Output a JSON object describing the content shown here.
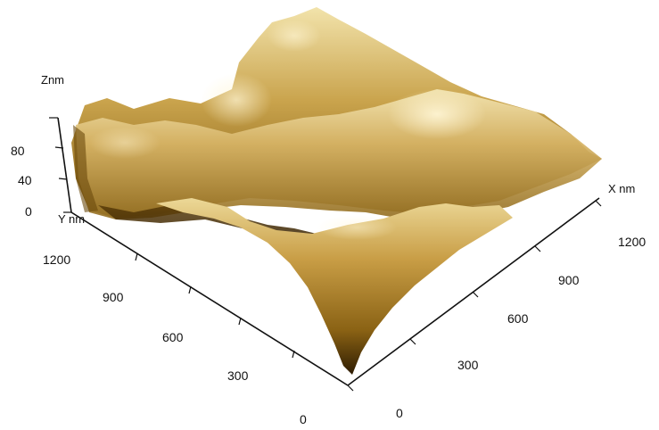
{
  "figure": {
    "z_axis": {
      "title": "Znm",
      "ticks": [
        "0",
        "40",
        "80"
      ]
    },
    "y_axis": {
      "title": "Y nm",
      "ticks": [
        "0",
        "300",
        "600",
        "900",
        "1200"
      ]
    },
    "x_axis": {
      "title": "X nm",
      "ticks": [
        "0",
        "300",
        "600",
        "900",
        "1200"
      ]
    },
    "colors": {
      "surface_dark": "#3a2403",
      "surface_mid": "#a87d25",
      "surface_light": "#f0e0a8",
      "axis": "#111111"
    }
  }
}
